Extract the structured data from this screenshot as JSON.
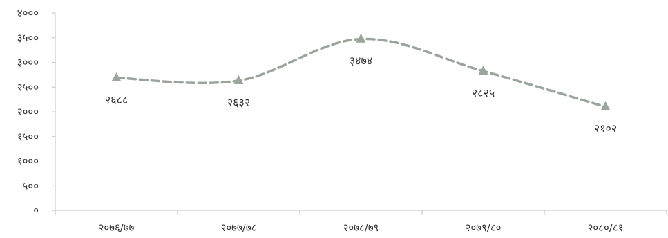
{
  "chart_data": {
    "type": "line",
    "title": "",
    "xlabel": "",
    "ylabel": "",
    "ylim": [
      0,
      4000
    ],
    "grid": false,
    "legend": "none",
    "smooth": true,
    "line_style": "dashed",
    "marker": "triangle",
    "colors": {
      "series": "#9aa59c",
      "axis": "#bfbfbf",
      "text": "#333333"
    },
    "y_ticks": [
      {
        "value": 0,
        "label": "०"
      },
      {
        "value": 500,
        "label": "५००"
      },
      {
        "value": 1000,
        "label": "१०००"
      },
      {
        "value": 1500,
        "label": "१५००"
      },
      {
        "value": 2000,
        "label": "२०००"
      },
      {
        "value": 2500,
        "label": "२५००"
      },
      {
        "value": 3000,
        "label": "३०००"
      },
      {
        "value": 3500,
        "label": "३५००"
      },
      {
        "value": 4000,
        "label": "४०००"
      }
    ],
    "categories": [
      "२०७६/७७",
      "२०७७/७८",
      "२०७८/७९",
      "२०७९/८०",
      "२०८०/८१"
    ],
    "series": [
      {
        "values": [
          2688,
          2632,
          3474,
          2825,
          2102
        ],
        "labels": [
          "२६८८",
          "२६३२",
          "३४७४",
          "२८२५",
          "२१०२"
        ]
      }
    ]
  }
}
